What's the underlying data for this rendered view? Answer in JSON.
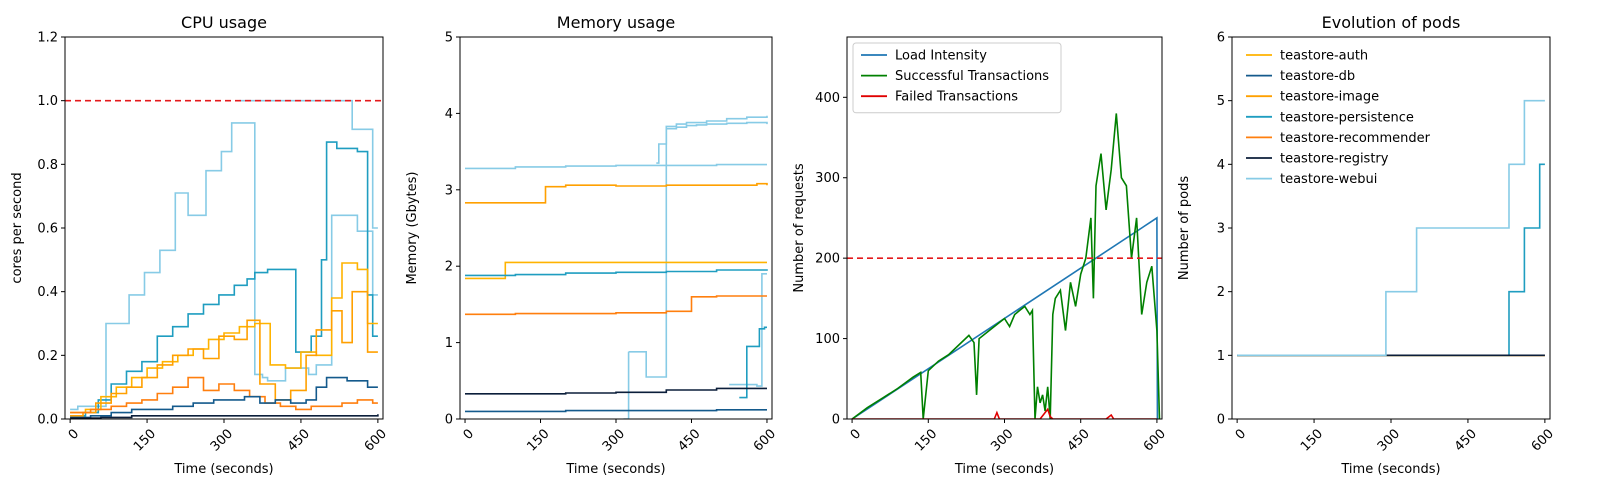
{
  "page": {
    "title": ""
  },
  "chart_data": [
    {
      "type": "line",
      "title": "CPU usage",
      "xlabel": "Time (seconds)",
      "ylabel": "cores per second",
      "xlim": [
        -10,
        610
      ],
      "ylim": [
        0,
        1.2
      ],
      "xticks": [
        0,
        150,
        300,
        450,
        600
      ],
      "yticks": [
        0.0,
        0.2,
        0.4,
        0.6,
        0.8,
        1.0,
        1.2
      ],
      "ytick_decimals": 1,
      "step": true,
      "hline": {
        "y": 1.0,
        "color": "#e41a1c",
        "dashed": true
      },
      "legend": null,
      "series": [
        {
          "color": "#87cbe6",
          "x": [
            0,
            15,
            30,
            70,
            85,
            115,
            145,
            175,
            205,
            230,
            265,
            295,
            315,
            345,
            360,
            375,
            385,
            420,
            465,
            480,
            510,
            560,
            590,
            600
          ],
          "y": [
            0.03,
            0.04,
            0.04,
            0.3,
            0.3,
            0.39,
            0.46,
            0.53,
            0.71,
            0.64,
            0.78,
            0.84,
            0.93,
            0.93,
            0.14,
            0.13,
            0.12,
            0.16,
            0.14,
            0.17,
            0.64,
            0.59,
            0.39,
            0.39
          ]
        },
        {
          "color": "#87cbe6",
          "x": [
            330,
            360,
            370,
            380,
            540,
            550,
            580,
            590,
            600
          ],
          "y": [
            1.0,
            1.0,
            1.0,
            1.0,
            1.0,
            0.91,
            0.91,
            0.6,
            0.6
          ]
        },
        {
          "color": "#1f9dc0",
          "x": [
            0,
            30,
            55,
            80,
            110,
            140,
            170,
            200,
            230,
            260,
            290,
            320,
            345,
            360,
            385,
            410,
            440,
            470,
            490,
            500,
            520,
            560,
            580,
            590,
            600
          ],
          "y": [
            0.01,
            0.02,
            0.06,
            0.11,
            0.15,
            0.18,
            0.26,
            0.29,
            0.33,
            0.36,
            0.39,
            0.42,
            0.44,
            0.46,
            0.47,
            0.47,
            0.21,
            0.26,
            0.5,
            0.87,
            0.85,
            0.84,
            0.39,
            0.26,
            0.26
          ]
        },
        {
          "color": "#ffb300",
          "x": [
            0,
            30,
            60,
            90,
            120,
            150,
            180,
            210,
            240,
            270,
            300,
            330,
            360,
            390,
            420,
            450,
            480,
            510,
            530,
            560,
            580,
            600
          ],
          "y": [
            0.02,
            0.03,
            0.07,
            0.1,
            0.13,
            0.16,
            0.18,
            0.2,
            0.22,
            0.25,
            0.27,
            0.29,
            0.3,
            0.17,
            0.16,
            0.21,
            0.2,
            0.38,
            0.49,
            0.47,
            0.3,
            0.3
          ]
        },
        {
          "color": "#ffa000",
          "x": [
            0,
            25,
            50,
            80,
            110,
            140,
            170,
            200,
            230,
            260,
            290,
            320,
            345,
            370,
            400,
            430,
            460,
            480,
            510,
            530,
            550,
            580,
            600
          ],
          "y": [
            0.01,
            0.02,
            0.05,
            0.08,
            0.1,
            0.13,
            0.17,
            0.2,
            0.22,
            0.19,
            0.26,
            0.25,
            0.31,
            0.11,
            0.06,
            0.09,
            0.2,
            0.28,
            0.34,
            0.24,
            0.4,
            0.21,
            0.21
          ]
        },
        {
          "color": "#ff7f0e",
          "x": [
            0,
            40,
            80,
            110,
            140,
            170,
            200,
            230,
            260,
            290,
            320,
            350,
            380,
            410,
            440,
            470,
            500,
            530,
            560,
            590,
            600
          ],
          "y": [
            0.02,
            0.03,
            0.04,
            0.05,
            0.06,
            0.08,
            0.1,
            0.13,
            0.09,
            0.11,
            0.09,
            0.07,
            0.05,
            0.04,
            0.03,
            0.04,
            0.04,
            0.05,
            0.06,
            0.05,
            0.05
          ]
        },
        {
          "color": "#145a8c",
          "x": [
            0,
            40,
            80,
            120,
            160,
            200,
            240,
            280,
            310,
            340,
            370,
            400,
            430,
            460,
            480,
            500,
            540,
            580,
            600
          ],
          "y": [
            0.005,
            0.01,
            0.02,
            0.03,
            0.03,
            0.04,
            0.05,
            0.06,
            0.06,
            0.07,
            0.05,
            0.06,
            0.05,
            0.06,
            0.1,
            0.13,
            0.12,
            0.1,
            0.1
          ]
        },
        {
          "color": "#0b1e3a",
          "x": [
            0,
            60,
            120,
            180,
            240,
            300,
            360,
            420,
            480,
            540,
            600
          ],
          "y": [
            0.003,
            0.005,
            0.01,
            0.01,
            0.01,
            0.01,
            0.01,
            0.01,
            0.01,
            0.01,
            0.015
          ]
        }
      ]
    },
    {
      "type": "line",
      "title": "Memory usage",
      "xlabel": "Time (seconds)",
      "ylabel": "Memory (Gbytes)",
      "xlim": [
        -10,
        610
      ],
      "ylim": [
        0,
        5
      ],
      "xticks": [
        0,
        150,
        300,
        450,
        600
      ],
      "yticks": [
        0,
        1,
        2,
        3,
        4,
        5
      ],
      "ytick_decimals": 0,
      "step": true,
      "legend": null,
      "series": [
        {
          "color": "#87cbe6",
          "x": [
            0,
            100,
            200,
            300,
            400,
            500,
            600
          ],
          "y": [
            3.28,
            3.3,
            3.31,
            3.32,
            3.32,
            3.33,
            3.33
          ]
        },
        {
          "color": "#87cbe6",
          "x": [
            325,
            340,
            360,
            380,
            400,
            420,
            440,
            480,
            520,
            560,
            600
          ],
          "y": [
            0.88,
            0.88,
            0.55,
            0.55,
            3.83,
            3.86,
            3.88,
            3.9,
            3.93,
            3.95,
            3.97
          ]
        },
        {
          "color": "#87cbe6",
          "x": [
            380,
            385,
            400,
            420,
            440,
            460,
            480,
            520,
            560,
            600
          ],
          "y": [
            3.35,
            3.6,
            3.8,
            3.82,
            3.84,
            3.85,
            3.86,
            3.87,
            3.88,
            3.86
          ]
        },
        {
          "color": "#87cbe6",
          "x": [
            315,
            320,
            325
          ],
          "y": [
            0.0,
            0.0,
            0.88
          ]
        },
        {
          "color": "#87cbe6",
          "x": [
            525,
            560,
            580,
            590,
            600
          ],
          "y": [
            0.45,
            0.45,
            0.43,
            1.9,
            1.9
          ]
        },
        {
          "color": "#ffa000",
          "x": [
            0,
            150,
            160,
            200,
            300,
            400,
            500,
            580,
            600
          ],
          "y": [
            2.83,
            2.83,
            3.04,
            3.06,
            3.05,
            3.06,
            3.06,
            3.08,
            3.06
          ]
        },
        {
          "color": "#ffb300",
          "x": [
            0,
            70,
            80,
            200,
            300,
            400,
            500,
            600
          ],
          "y": [
            1.84,
            1.84,
            2.05,
            2.05,
            2.05,
            2.05,
            2.05,
            2.05
          ]
        },
        {
          "color": "#1f9dc0",
          "x": [
            0,
            100,
            200,
            300,
            400,
            500,
            600
          ],
          "y": [
            1.88,
            1.89,
            1.91,
            1.92,
            1.93,
            1.95,
            1.96
          ]
        },
        {
          "color": "#1f9dc0",
          "x": [
            545,
            560,
            575,
            585,
            595,
            600
          ],
          "y": [
            0.28,
            0.95,
            0.95,
            1.18,
            1.2,
            1.2
          ]
        },
        {
          "color": "#ff7f0e",
          "x": [
            0,
            100,
            200,
            300,
            400,
            450,
            500,
            600
          ],
          "y": [
            1.37,
            1.38,
            1.38,
            1.39,
            1.41,
            1.6,
            1.61,
            1.61
          ]
        },
        {
          "color": "#0b1e3a",
          "x": [
            0,
            100,
            200,
            300,
            400,
            500,
            600
          ],
          "y": [
            0.33,
            0.33,
            0.34,
            0.35,
            0.38,
            0.4,
            0.4
          ]
        },
        {
          "color": "#145a8c",
          "x": [
            0,
            100,
            200,
            300,
            400,
            500,
            600
          ],
          "y": [
            0.1,
            0.1,
            0.11,
            0.11,
            0.11,
            0.12,
            0.12
          ]
        }
      ]
    },
    {
      "type": "line",
      "title": "",
      "xlabel": "Time (seconds)",
      "ylabel": "Number of requests",
      "xlim": [
        -10,
        610
      ],
      "ylim": [
        0,
        475
      ],
      "xticks": [
        0,
        150,
        300,
        450,
        600
      ],
      "yticks": [
        0,
        100,
        200,
        300,
        400
      ],
      "ytick_decimals": 0,
      "step": false,
      "hline": {
        "y": 200,
        "color": "#e41a1c",
        "dashed": true
      },
      "legend": {
        "position": "top-left",
        "framed": true
      },
      "series": [
        {
          "name": "Load Intensity",
          "color": "#1f77b4",
          "x": [
            0,
            600,
            601
          ],
          "y": [
            0,
            250,
            0
          ]
        },
        {
          "name": "Successful Transactions",
          "color": "#008000",
          "x": [
            0,
            30,
            60,
            90,
            120,
            135,
            140,
            150,
            170,
            190,
            210,
            230,
            240,
            245,
            250,
            270,
            290,
            300,
            310,
            320,
            330,
            340,
            350,
            355,
            360,
            365,
            370,
            375,
            380,
            385,
            390,
            395,
            400,
            410,
            420,
            430,
            440,
            450,
            460,
            470,
            475,
            480,
            490,
            500,
            510,
            520,
            530,
            540,
            550,
            560,
            570,
            580,
            590,
            600,
            605
          ],
          "y": [
            0,
            14,
            26,
            38,
            52,
            58,
            0,
            60,
            72,
            80,
            92,
            104,
            95,
            30,
            100,
            110,
            120,
            125,
            115,
            130,
            135,
            140,
            130,
            135,
            0,
            40,
            20,
            30,
            10,
            40,
            0,
            130,
            150,
            160,
            110,
            170,
            140,
            180,
            200,
            250,
            150,
            290,
            330,
            260,
            310,
            380,
            300,
            290,
            200,
            250,
            130,
            170,
            190,
            110,
            0
          ]
        },
        {
          "name": "Failed Transactions",
          "color": "#e00000",
          "x": [
            0,
            280,
            285,
            290,
            370,
            385,
            390,
            395,
            500,
            510,
            515,
            600
          ],
          "y": [
            0,
            0,
            8,
            0,
            0,
            12,
            3,
            0,
            0,
            5,
            0,
            0
          ]
        }
      ]
    },
    {
      "type": "line",
      "title": "Evolution of pods",
      "xlabel": "Time (seconds)",
      "ylabel": "Number of pods",
      "xlim": [
        -10,
        610
      ],
      "ylim": [
        0,
        6
      ],
      "xticks": [
        0,
        150,
        300,
        450,
        600
      ],
      "yticks": [
        0,
        1,
        2,
        3,
        4,
        5,
        6
      ],
      "ytick_decimals": 0,
      "step": true,
      "legend": {
        "position": "top-left",
        "framed": false
      },
      "series": [
        {
          "name": "teastore-auth",
          "color": "#ffb300",
          "x": [
            0,
            600
          ],
          "y": [
            1,
            1
          ]
        },
        {
          "name": "teastore-db",
          "color": "#145a8c",
          "x": [
            0,
            600
          ],
          "y": [
            1,
            1
          ]
        },
        {
          "name": "teastore-image",
          "color": "#ffa000",
          "x": [
            0,
            600
          ],
          "y": [
            1,
            1
          ]
        },
        {
          "name": "teastore-persistence",
          "color": "#1f9dc0",
          "x": [
            0,
            530,
            560,
            590,
            600
          ],
          "y": [
            1,
            2,
            3,
            4,
            4
          ]
        },
        {
          "name": "teastore-recommender",
          "color": "#ff7f0e",
          "x": [
            0,
            600
          ],
          "y": [
            1,
            1
          ]
        },
        {
          "name": "teastore-registry",
          "color": "#0b1e3a",
          "x": [
            0,
            600
          ],
          "y": [
            1,
            1
          ]
        },
        {
          "name": "teastore-webui",
          "color": "#87cbe6",
          "x": [
            0,
            290,
            350,
            530,
            560,
            600
          ],
          "y": [
            1,
            2,
            3,
            4,
            5,
            5
          ]
        }
      ]
    }
  ]
}
